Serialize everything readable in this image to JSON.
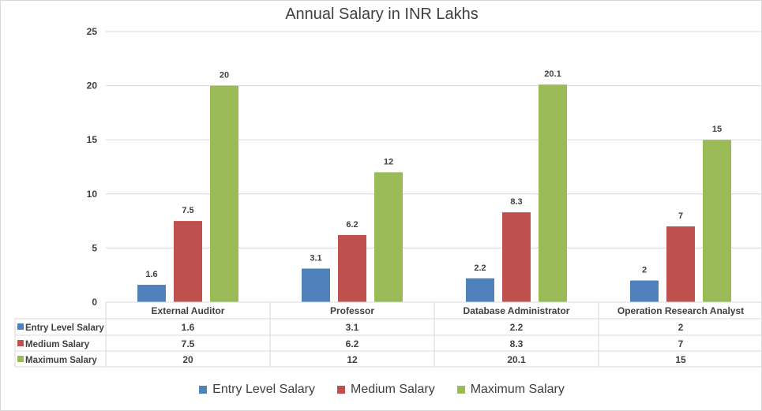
{
  "chart_data": {
    "type": "bar",
    "title": "Annual Salary in INR Lakhs",
    "categories": [
      "External Auditor",
      "Professor",
      "Database Administrator",
      "Operation Research Analyst"
    ],
    "series": [
      {
        "name": "Entry Level Salary",
        "values": [
          1.6,
          3.1,
          2.2,
          2
        ],
        "labels": [
          "1.6",
          "3.1",
          "2.2",
          "2"
        ],
        "color": "#4f81bd"
      },
      {
        "name": "Medium Salary",
        "values": [
          7.5,
          6.2,
          8.3,
          7
        ],
        "labels": [
          "7.5",
          "6.2",
          "8.3",
          "7"
        ],
        "color": "#c0504d"
      },
      {
        "name": "Maximum Salary",
        "values": [
          20,
          12,
          20.1,
          15
        ],
        "labels": [
          "20",
          "12",
          "20.1",
          "15"
        ],
        "color": "#9bbb59"
      }
    ],
    "yticks": [
      "0",
      "5",
      "10",
      "15",
      "20",
      "25"
    ],
    "ylim": [
      0,
      25
    ],
    "grid": true,
    "data_table": true,
    "legend": "bottom"
  }
}
